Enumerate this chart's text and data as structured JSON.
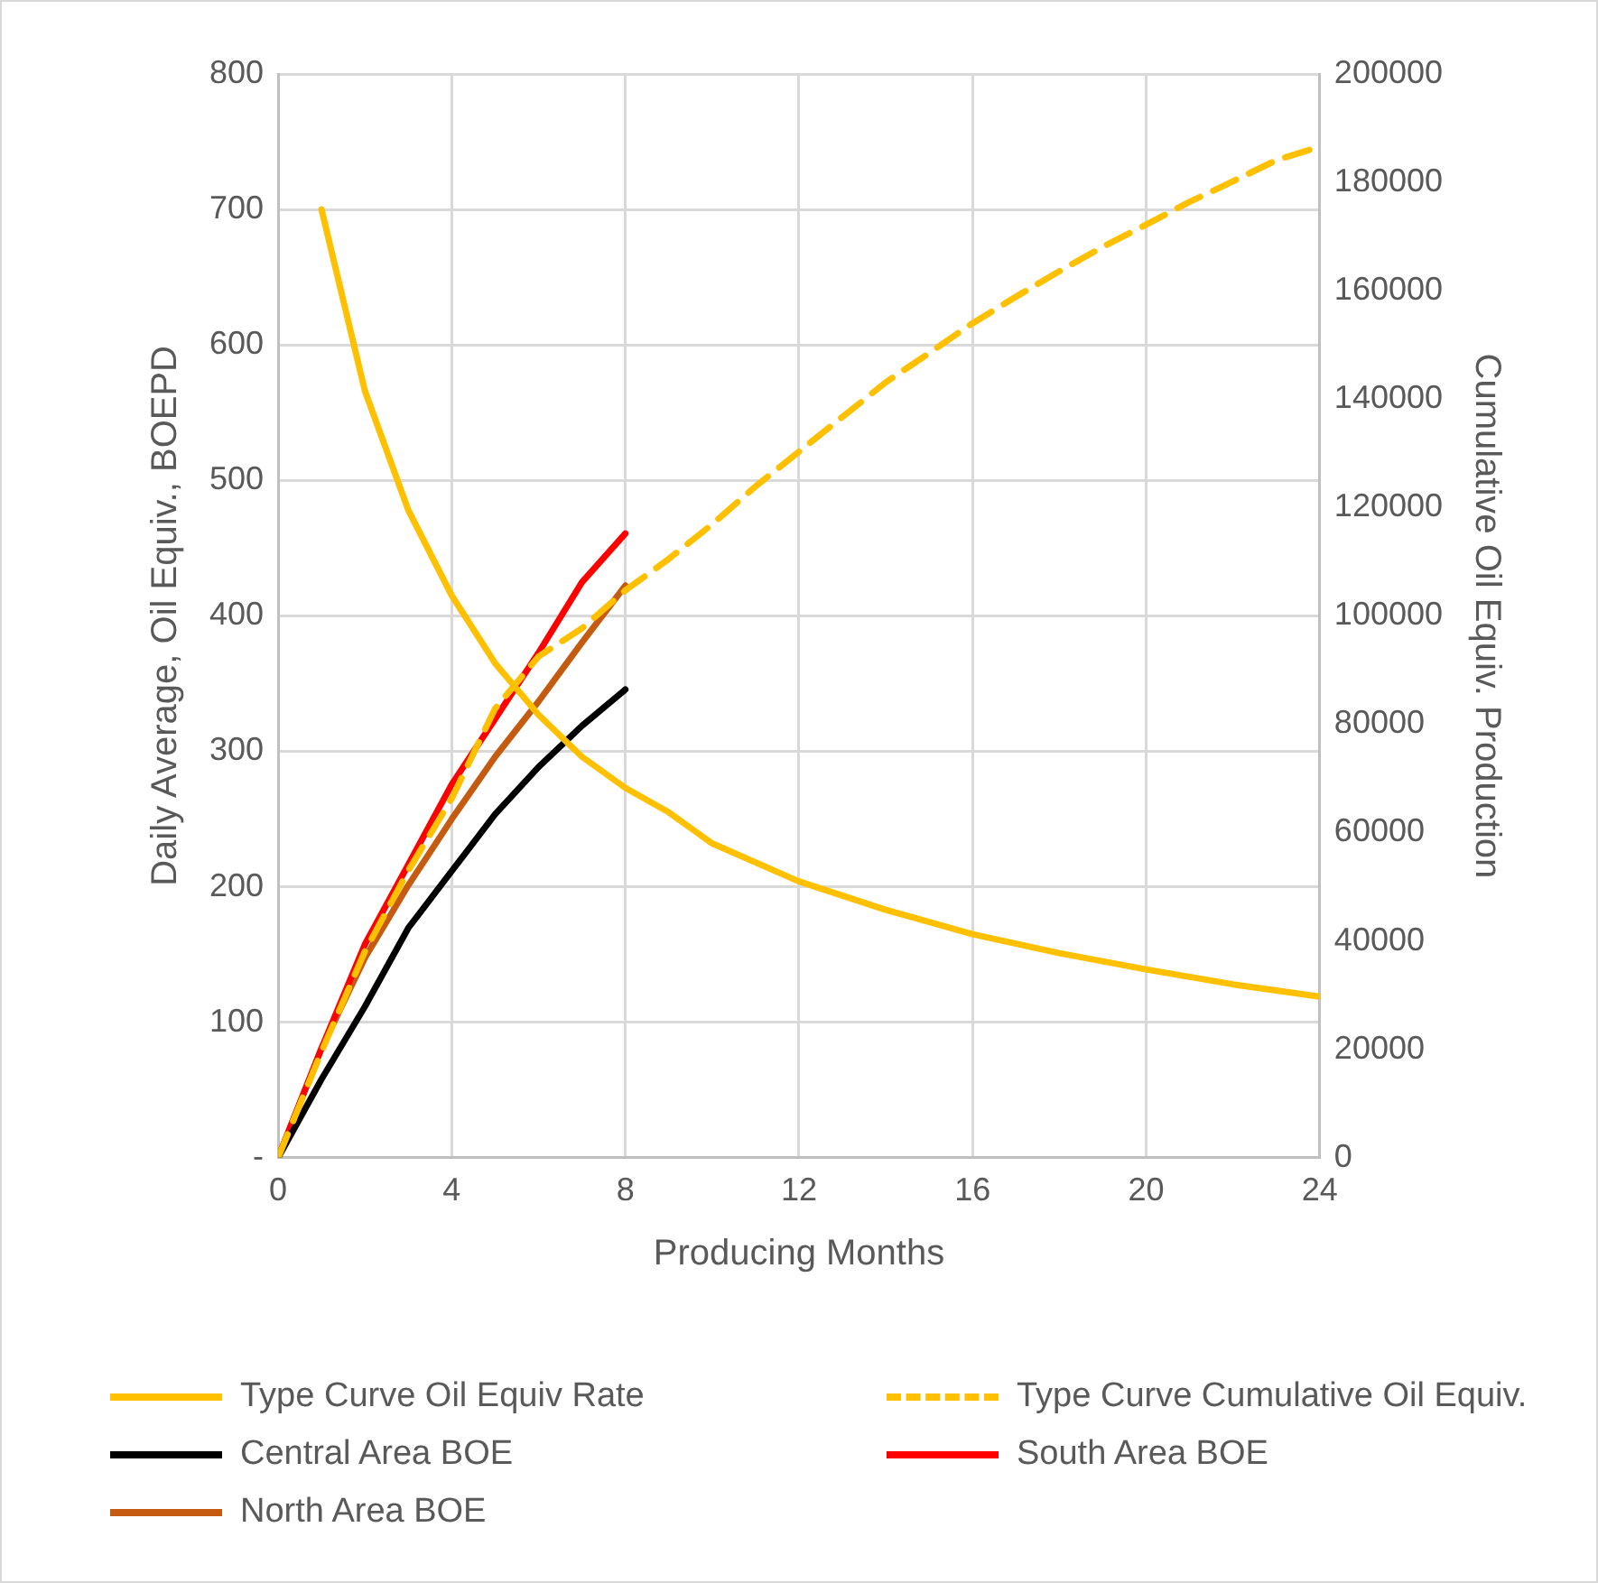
{
  "chart_data": {
    "type": "line",
    "xlabel": "Producing Months",
    "ylabel": "Daily Average, Oil Equiv., BOEPD",
    "y2label": "Cumulative Oil Equiv. Production",
    "xlim": [
      0,
      24
    ],
    "xticks": [
      0,
      4,
      8,
      12,
      16,
      20,
      24
    ],
    "ylim": [
      0,
      800
    ],
    "yticks": [
      {
        "value": 0,
        "label": "-"
      },
      100,
      200,
      300,
      400,
      500,
      600,
      700,
      800
    ],
    "y2lim": [
      0,
      200000
    ],
    "y2ticks": [
      0,
      20000,
      40000,
      60000,
      80000,
      100000,
      120000,
      140000,
      160000,
      180000,
      200000
    ],
    "grid": true,
    "legend": "bottom",
    "marker": "none",
    "series": [
      {
        "name": "Type Curve Oil Equiv Rate",
        "color": "#ffc000",
        "line_style": "solid",
        "x": [
          1,
          2,
          3,
          4,
          5,
          6,
          7,
          8,
          9,
          10,
          12,
          14,
          16,
          18,
          20,
          22,
          24
        ],
        "values": [
          700,
          566,
          478,
          415,
          365,
          327,
          296,
          273,
          255,
          232,
          204,
          183,
          165,
          151,
          139,
          128,
          119
        ]
      },
      {
        "name": "Type Curve Cumulative Oil Equiv.",
        "color": "#ffc000",
        "line_style": "dashed",
        "axis": "y2",
        "x": [
          0,
          1,
          2,
          3,
          4,
          5,
          6,
          7,
          8,
          9,
          10,
          11,
          12,
          13,
          14,
          15,
          16,
          17,
          18,
          19,
          20,
          21,
          22,
          23,
          24
        ],
        "values": [
          0,
          19600,
          38100,
          53000,
          66300,
          82900,
          92500,
          97700,
          104700,
          110500,
          116900,
          123900,
          130300,
          136700,
          143100,
          148500,
          154000,
          158900,
          163600,
          168100,
          172200,
          176400,
          180200,
          184100,
          186600
        ]
      },
      {
        "name": "Central Area BOE",
        "color": "#000000",
        "line_style": "solid",
        "axis": "y2",
        "x": [
          0,
          1,
          2,
          3,
          4,
          5,
          6,
          7,
          8
        ],
        "values": [
          0,
          14500,
          27900,
          42400,
          52900,
          63400,
          72100,
          79700,
          86400
        ]
      },
      {
        "name": "South Area BOE",
        "color": "#ff0000",
        "line_style": "solid",
        "axis": "y2",
        "x": [
          0,
          1,
          2,
          3,
          4,
          5,
          6,
          7,
          8
        ],
        "values": [
          0,
          20200,
          39400,
          54100,
          68900,
          81000,
          93200,
          106200,
          115200
        ]
      },
      {
        "name": "North Area BOE",
        "color": "#c55a11",
        "line_style": "solid",
        "axis": "y2",
        "x": [
          0,
          1,
          2,
          3,
          4,
          5,
          6,
          7,
          8
        ],
        "values": [
          0,
          20200,
          36900,
          50300,
          62500,
          74000,
          84200,
          95100,
          105600
        ]
      }
    ]
  }
}
